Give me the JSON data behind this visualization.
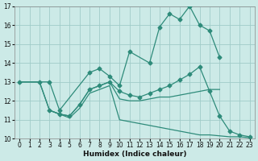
{
  "xlabel": "Humidex (Indice chaleur)",
  "bg_color": "#cceae7",
  "grid_color": "#a0ccc8",
  "line_color": "#2e8b7a",
  "xlim": [
    -0.5,
    23.5
  ],
  "ylim": [
    10,
    17
  ],
  "yticks": [
    10,
    11,
    12,
    13,
    14,
    15,
    16,
    17
  ],
  "xticks": [
    0,
    1,
    2,
    3,
    4,
    5,
    6,
    7,
    8,
    9,
    10,
    11,
    12,
    13,
    14,
    15,
    16,
    17,
    18,
    19,
    20,
    21,
    22,
    23
  ],
  "line1_x": [
    0,
    2,
    3,
    4,
    7,
    8,
    9,
    10,
    11,
    13,
    14,
    15,
    16,
    17,
    18,
    19,
    20
  ],
  "line1_y": [
    13,
    13,
    13,
    11.5,
    13.5,
    13.7,
    13.3,
    12.8,
    14.6,
    14.0,
    15.9,
    16.6,
    16.3,
    17.0,
    16.0,
    15.7,
    14.3
  ],
  "line2_x": [
    3,
    4,
    5,
    6,
    7,
    8,
    9,
    10,
    11,
    12,
    13,
    14,
    15,
    16,
    17,
    18,
    19,
    20,
    21,
    22,
    23
  ],
  "line2_y": [
    11.5,
    11.3,
    11.2,
    11.8,
    12.6,
    12.8,
    13.0,
    12.5,
    12.3,
    12.2,
    12.4,
    12.6,
    12.8,
    13.1,
    13.4,
    13.8,
    12.5,
    11.2,
    10.4,
    10.2,
    10.1
  ],
  "line3_x": [
    0,
    2,
    3,
    4,
    5,
    6,
    7,
    8,
    9,
    10,
    11,
    12,
    13,
    14,
    15,
    16,
    17,
    18,
    19,
    20
  ],
  "line3_y": [
    13,
    13,
    11.5,
    11.3,
    11.2,
    11.8,
    12.6,
    12.8,
    13.0,
    12.1,
    12.0,
    12.0,
    12.1,
    12.2,
    12.2,
    12.3,
    12.4,
    12.5,
    12.6,
    12.6
  ],
  "line4_x": [
    0,
    2,
    3,
    4,
    5,
    6,
    7,
    8,
    9,
    10,
    11,
    12,
    13,
    14,
    15,
    16,
    17,
    18,
    19,
    20,
    21,
    22,
    23
  ],
  "line4_y": [
    13,
    13,
    11.5,
    11.3,
    11.1,
    11.6,
    12.4,
    12.6,
    12.8,
    11.0,
    10.9,
    10.8,
    10.7,
    10.6,
    10.5,
    10.4,
    10.3,
    10.2,
    10.2,
    10.15,
    10.1,
    10.1,
    10.05
  ]
}
